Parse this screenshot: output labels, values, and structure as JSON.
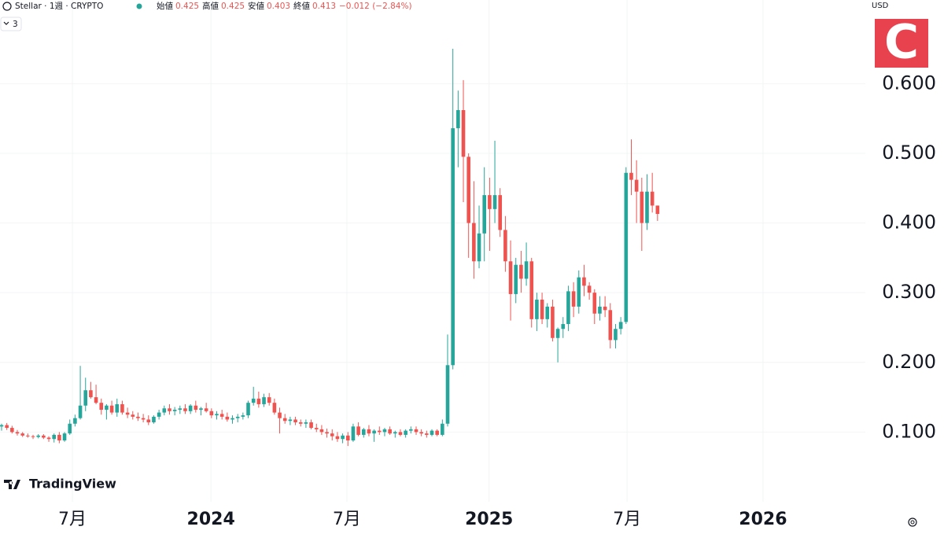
{
  "header": {
    "symbol": "Stellar · 1週 · CRYPTO",
    "open_label": "始値",
    "open": "0.425",
    "high_label": "高値",
    "high": "0.425",
    "low_label": "安値",
    "low": "0.403",
    "close_label": "終値",
    "close": "0.413",
    "change": "−0.012 (−2.84%)",
    "indicator_count": "3"
  },
  "chart_data": {
    "type": "candlestick",
    "currency": "USD",
    "open": [
      0.108,
      0.11,
      0.106,
      0.1,
      0.098,
      0.095,
      0.094,
      0.093,
      0.095,
      0.092,
      0.09,
      0.096,
      0.088,
      0.098,
      0.112,
      0.12,
      0.138,
      0.16,
      0.15,
      0.142,
      0.132,
      0.138,
      0.128,
      0.14,
      0.128,
      0.125,
      0.122,
      0.12,
      0.118,
      0.114,
      0.122,
      0.128,
      0.134,
      0.13,
      0.132,
      0.134,
      0.13,
      0.138,
      0.132,
      0.134,
      0.13,
      0.124,
      0.126,
      0.122,
      0.118,
      0.12,
      0.122,
      0.124,
      0.142,
      0.148,
      0.14,
      0.15,
      0.142,
      0.128,
      0.12,
      0.116,
      0.118,
      0.114,
      0.112,
      0.114,
      0.106,
      0.104,
      0.1,
      0.098,
      0.094,
      0.09,
      0.095,
      0.088,
      0.108,
      0.096,
      0.104,
      0.098,
      0.102,
      0.1,
      0.104,
      0.098,
      0.1,
      0.096,
      0.102,
      0.104,
      0.1,
      0.098,
      0.096,
      0.102,
      0.096,
      0.112,
      0.196,
      0.536,
      0.562,
      0.495,
      0.4,
      0.345,
      0.385,
      0.44,
      0.42,
      0.44,
      0.39,
      0.345,
      0.298,
      0.34,
      0.32,
      0.345,
      0.262,
      0.29,
      0.262,
      0.28,
      0.235,
      0.248,
      0.255,
      0.302,
      0.28,
      0.322,
      0.31,
      0.3,
      0.27,
      0.28,
      0.275,
      0.232,
      0.248,
      0.258,
      0.472,
      0.462,
      0.445,
      0.4,
      0.445,
      0.425
    ],
    "high": [
      0.112,
      0.113,
      0.109,
      0.103,
      0.1,
      0.098,
      0.096,
      0.097,
      0.097,
      0.094,
      0.098,
      0.1,
      0.1,
      0.118,
      0.125,
      0.195,
      0.178,
      0.172,
      0.168,
      0.148,
      0.14,
      0.145,
      0.148,
      0.145,
      0.135,
      0.13,
      0.128,
      0.126,
      0.124,
      0.124,
      0.132,
      0.138,
      0.14,
      0.136,
      0.138,
      0.14,
      0.14,
      0.145,
      0.136,
      0.142,
      0.134,
      0.13,
      0.132,
      0.128,
      0.124,
      0.126,
      0.128,
      0.145,
      0.165,
      0.158,
      0.155,
      0.156,
      0.148,
      0.135,
      0.126,
      0.122,
      0.122,
      0.118,
      0.118,
      0.118,
      0.112,
      0.11,
      0.105,
      0.104,
      0.1,
      0.098,
      0.1,
      0.112,
      0.114,
      0.106,
      0.11,
      0.104,
      0.108,
      0.106,
      0.108,
      0.102,
      0.104,
      0.104,
      0.108,
      0.108,
      0.104,
      0.102,
      0.104,
      0.104,
      0.118,
      0.24,
      0.65,
      0.59,
      0.605,
      0.5,
      0.46,
      0.425,
      0.48,
      0.465,
      0.518,
      0.45,
      0.41,
      0.375,
      0.35,
      0.36,
      0.372,
      0.35,
      0.3,
      0.3,
      0.285,
      0.29,
      0.25,
      0.265,
      0.31,
      0.315,
      0.332,
      0.34,
      0.315,
      0.305,
      0.295,
      0.295,
      0.285,
      0.255,
      0.265,
      0.48,
      0.52,
      0.49,
      0.465,
      0.47,
      0.472,
      0.425
    ],
    "low": [
      0.102,
      0.103,
      0.098,
      0.095,
      0.093,
      0.092,
      0.09,
      0.091,
      0.09,
      0.086,
      0.085,
      0.084,
      0.086,
      0.096,
      0.108,
      0.118,
      0.13,
      0.148,
      0.14,
      0.125,
      0.118,
      0.125,
      0.122,
      0.125,
      0.12,
      0.118,
      0.116,
      0.114,
      0.11,
      0.112,
      0.118,
      0.124,
      0.125,
      0.124,
      0.126,
      0.126,
      0.126,
      0.128,
      0.124,
      0.128,
      0.12,
      0.118,
      0.118,
      0.115,
      0.112,
      0.114,
      0.118,
      0.12,
      0.138,
      0.135,
      0.136,
      0.138,
      0.125,
      0.098,
      0.112,
      0.11,
      0.11,
      0.108,
      0.106,
      0.104,
      0.1,
      0.096,
      0.092,
      0.088,
      0.086,
      0.084,
      0.08,
      0.086,
      0.094,
      0.092,
      0.094,
      0.086,
      0.096,
      0.094,
      0.096,
      0.092,
      0.094,
      0.092,
      0.098,
      0.096,
      0.094,
      0.092,
      0.094,
      0.094,
      0.094,
      0.108,
      0.19,
      0.48,
      0.43,
      0.35,
      0.32,
      0.335,
      0.345,
      0.36,
      0.4,
      0.38,
      0.33,
      0.26,
      0.285,
      0.3,
      0.31,
      0.25,
      0.245,
      0.255,
      0.25,
      0.23,
      0.2,
      0.235,
      0.245,
      0.265,
      0.27,
      0.295,
      0.29,
      0.255,
      0.26,
      0.265,
      0.22,
      0.22,
      0.24,
      0.255,
      0.44,
      0.4,
      0.36,
      0.39,
      0.415,
      0.403
    ],
    "close": [
      0.11,
      0.106,
      0.1,
      0.098,
      0.095,
      0.094,
      0.093,
      0.095,
      0.092,
      0.09,
      0.096,
      0.088,
      0.098,
      0.112,
      0.12,
      0.138,
      0.16,
      0.15,
      0.142,
      0.132,
      0.138,
      0.128,
      0.14,
      0.128,
      0.125,
      0.122,
      0.12,
      0.118,
      0.114,
      0.122,
      0.128,
      0.134,
      0.13,
      0.132,
      0.134,
      0.13,
      0.138,
      0.132,
      0.134,
      0.13,
      0.124,
      0.126,
      0.122,
      0.118,
      0.12,
      0.122,
      0.124,
      0.142,
      0.148,
      0.14,
      0.15,
      0.142,
      0.128,
      0.12,
      0.116,
      0.118,
      0.114,
      0.112,
      0.114,
      0.106,
      0.104,
      0.1,
      0.098,
      0.094,
      0.09,
      0.095,
      0.088,
      0.108,
      0.096,
      0.104,
      0.098,
      0.102,
      0.1,
      0.104,
      0.098,
      0.1,
      0.096,
      0.102,
      0.104,
      0.1,
      0.098,
      0.096,
      0.102,
      0.096,
      0.112,
      0.196,
      0.536,
      0.562,
      0.495,
      0.4,
      0.345,
      0.385,
      0.44,
      0.42,
      0.44,
      0.39,
      0.345,
      0.298,
      0.34,
      0.32,
      0.345,
      0.262,
      0.29,
      0.262,
      0.28,
      0.235,
      0.248,
      0.255,
      0.302,
      0.28,
      0.322,
      0.31,
      0.3,
      0.27,
      0.28,
      0.275,
      0.232,
      0.248,
      0.258,
      0.472,
      0.462,
      0.445,
      0.4,
      0.445,
      0.425,
      0.413
    ],
    "colors": {
      "up": "#26a69a",
      "down": "#ef5350"
    },
    "ylim": [
      0,
      0.72
    ],
    "yticks": [
      {
        "value": 0.1,
        "label": "0.100"
      },
      {
        "value": 0.2,
        "label": "0.200"
      },
      {
        "value": 0.3,
        "label": "0.300"
      },
      {
        "value": 0.4,
        "label": "0.400"
      },
      {
        "value": 0.5,
        "label": "0.500"
      },
      {
        "value": 0.6,
        "label": "0.600"
      }
    ],
    "xlim": [
      -0.3,
      164.6
    ],
    "xticks": [
      {
        "value": 13.5,
        "label": "7月"
      },
      {
        "value": 39.9,
        "label": "2024"
      },
      {
        "value": 65.8,
        "label": "7月"
      },
      {
        "value": 92.9,
        "label": "2025"
      },
      {
        "value": 119.2,
        "label": "7月"
      },
      {
        "value": 145.1,
        "label": "2026"
      }
    ],
    "grid": true
  },
  "branding": {
    "logo": "TradingView",
    "watermark": "C"
  }
}
